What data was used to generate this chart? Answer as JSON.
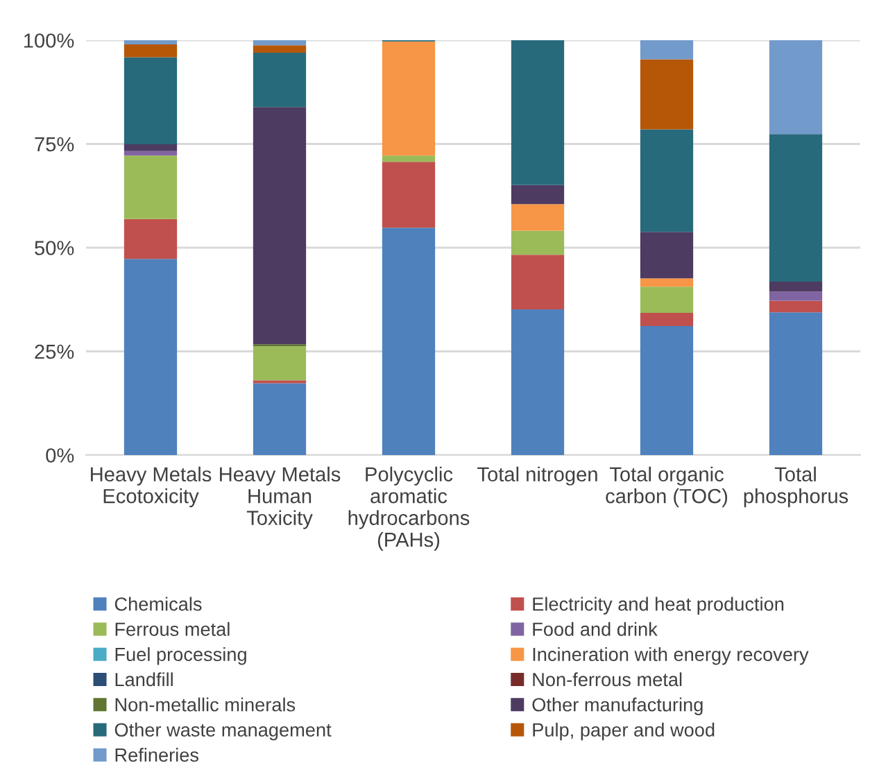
{
  "chart_data": {
    "type": "bar",
    "stacked": true,
    "categories": [
      "Heavy Metals\nEcotoxicity",
      "Heavy Metals\nHuman\nToxicity",
      "Polycyclic\naromatic\nhydrocarbons\n(PAHs)",
      "Total nitrogen",
      "Total organic\ncarbon (TOC)",
      "Total\nphosphorus"
    ],
    "series": [
      {
        "name": "Chemicals",
        "color": "#4f81bd",
        "values": [
          47.3,
          17.3,
          54.8,
          35.1,
          31.1,
          34.4
        ]
      },
      {
        "name": "Electricity and heat production",
        "color": "#c0504d",
        "values": [
          9.6,
          0.7,
          15.9,
          13.2,
          3.2,
          2.8
        ]
      },
      {
        "name": "Ferrous metal",
        "color": "#9bbb59",
        "values": [
          15.3,
          8.2,
          1.5,
          5.8,
          6.3,
          0
        ]
      },
      {
        "name": "Food and drink",
        "color": "#8064a2",
        "values": [
          1.1,
          0,
          0,
          0,
          0,
          2.2
        ]
      },
      {
        "name": "Fuel processing",
        "color": "#4bacc6",
        "values": [
          0,
          0,
          0,
          0,
          0,
          0
        ]
      },
      {
        "name": "Incineration with energy recovery",
        "color": "#f79646",
        "values": [
          0,
          0,
          27.5,
          6.4,
          2.0,
          0
        ]
      },
      {
        "name": "Landfill",
        "color": "#2c4d75",
        "values": [
          0,
          0,
          0,
          0,
          0,
          0
        ]
      },
      {
        "name": "Non-ferrous metal",
        "color": "#772c2a",
        "values": [
          0,
          0,
          0,
          0,
          0,
          0
        ]
      },
      {
        "name": "Non-metallic minerals",
        "color": "#5f7530",
        "values": [
          0,
          0.5,
          0,
          0,
          0,
          0
        ]
      },
      {
        "name": "Other manufacturing",
        "color": "#4d3b62",
        "values": [
          1.6,
          57.2,
          0,
          4.6,
          11.2,
          2.4
        ]
      },
      {
        "name": "Other waste management",
        "color": "#276a7c",
        "values": [
          21.0,
          13.1,
          0.3,
          34.9,
          24.7,
          35.6
        ]
      },
      {
        "name": "Pulp, paper and wood",
        "color": "#b65708",
        "values": [
          3.1,
          1.8,
          0,
          0,
          16.9,
          0
        ]
      },
      {
        "name": "Refineries",
        "color": "#729aca",
        "values": [
          1.0,
          1.2,
          0,
          0,
          4.6,
          22.6
        ]
      }
    ],
    "ylim": [
      0,
      100
    ],
    "yticks": [
      {
        "value": 0,
        "label": "0%"
      },
      {
        "value": 25,
        "label": "25%"
      },
      {
        "value": 50,
        "label": "50%"
      },
      {
        "value": 75,
        "label": "75%"
      },
      {
        "value": 100,
        "label": "100%"
      }
    ],
    "grid": "y",
    "legend": "bottom"
  }
}
